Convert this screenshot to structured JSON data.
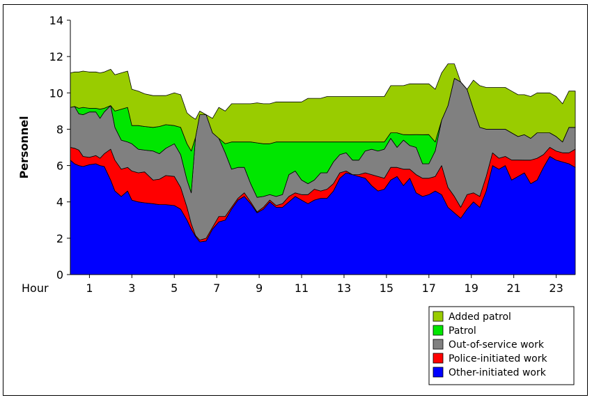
{
  "chart_data": {
    "type": "area",
    "stacked": true,
    "xlabel": "Hour",
    "ylabel": "Personnel",
    "xlim": [
      0.1,
      23.9
    ],
    "ylim": [
      0,
      14
    ],
    "yticks": [
      0,
      2,
      4,
      6,
      8,
      10,
      12,
      14
    ],
    "xticks": [
      1,
      3,
      5,
      7,
      9,
      11,
      13,
      15,
      17,
      19,
      21,
      23
    ],
    "legend_position": "bottom-right",
    "grid": false,
    "x": [
      0.1,
      0.3,
      0.5,
      0.7,
      1.0,
      1.3,
      1.5,
      1.7,
      2.0,
      2.2,
      2.5,
      2.8,
      3.0,
      3.3,
      3.6,
      4.0,
      4.3,
      4.6,
      5.0,
      5.3,
      5.6,
      5.8,
      6.0,
      6.2,
      6.5,
      6.8,
      7.1,
      7.4,
      7.7,
      8.0,
      8.3,
      8.6,
      8.9,
      9.2,
      9.5,
      9.8,
      10.1,
      10.4,
      10.7,
      11.0,
      11.3,
      11.6,
      11.9,
      12.2,
      12.5,
      12.8,
      13.1,
      13.4,
      13.7,
      14.0,
      14.3,
      14.6,
      14.9,
      15.2,
      15.5,
      15.8,
      16.1,
      16.4,
      16.7,
      17.0,
      17.3,
      17.6,
      17.9,
      18.2,
      18.5,
      18.8,
      19.1,
      19.4,
      19.7,
      20.0,
      20.3,
      20.6,
      20.9,
      21.2,
      21.5,
      21.8,
      22.1,
      22.4,
      22.7,
      23.0,
      23.3,
      23.6,
      23.9
    ],
    "series": [
      {
        "name": "Other-initiated work",
        "color": "#0000FF",
        "values": [
          6.3,
          6.1,
          6.0,
          5.95,
          6.05,
          6.1,
          6.0,
          5.95,
          5.2,
          4.6,
          4.3,
          4.6,
          4.1,
          4.0,
          3.95,
          3.9,
          3.85,
          3.85,
          3.8,
          3.6,
          3.0,
          2.5,
          2.1,
          1.8,
          1.85,
          2.5,
          2.9,
          3.0,
          3.6,
          4.1,
          4.3,
          3.9,
          3.4,
          3.6,
          4.0,
          3.7,
          3.7,
          4.0,
          4.3,
          4.1,
          3.9,
          4.1,
          4.2,
          4.2,
          4.6,
          5.3,
          5.6,
          5.5,
          5.4,
          5.3,
          4.9,
          4.6,
          4.7,
          5.2,
          5.4,
          4.9,
          5.3,
          4.5,
          4.3,
          4.4,
          4.6,
          4.4,
          3.7,
          3.4,
          3.1,
          3.6,
          4.0,
          3.7,
          4.6,
          6.0,
          5.8,
          6.0,
          5.2,
          5.4,
          5.6,
          5.0,
          5.2,
          5.9,
          6.5,
          6.3,
          6.2,
          6.1,
          5.9
        ]
      },
      {
        "name": "Police-initiated work",
        "color": "#FF0000",
        "values": [
          0.7,
          0.85,
          0.85,
          0.55,
          0.4,
          0.45,
          0.4,
          0.7,
          1.7,
          1.7,
          1.5,
          1.3,
          1.6,
          1.6,
          1.7,
          1.3,
          1.4,
          1.6,
          1.6,
          1.2,
          0.7,
          0.3,
          0.05,
          0.1,
          0.15,
          0.1,
          0.3,
          0.2,
          0.1,
          0.1,
          0.2,
          0.1,
          0.05,
          0.1,
          0.1,
          0.1,
          0.2,
          0.3,
          0.2,
          0.3,
          0.5,
          0.6,
          0.4,
          0.5,
          0.4,
          0.3,
          0.1,
          0.0,
          0.1,
          0.3,
          0.6,
          0.8,
          0.6,
          0.7,
          0.5,
          0.9,
          0.5,
          1.0,
          1.0,
          0.9,
          0.8,
          1.6,
          1.1,
          0.9,
          0.6,
          0.8,
          0.5,
          0.6,
          0.8,
          0.7,
          0.6,
          0.5,
          1.1,
          0.9,
          0.7,
          1.3,
          1.2,
          0.7,
          0.5,
          0.5,
          0.5,
          0.6,
          1.0
        ]
      },
      {
        "name": "Out-of-service work",
        "color": "#808080",
        "values": [
          2.2,
          2.3,
          2.0,
          2.3,
          2.5,
          2.4,
          2.2,
          2.3,
          2.4,
          1.8,
          1.6,
          1.4,
          1.5,
          1.3,
          1.2,
          1.6,
          1.4,
          1.5,
          1.8,
          1.8,
          1.5,
          1.7,
          5.4,
          6.9,
          6.8,
          5.2,
          4.3,
          3.5,
          2.1,
          1.7,
          1.4,
          1.0,
          0.8,
          0.6,
          0.3,
          0.5,
          0.5,
          1.2,
          1.2,
          0.8,
          0.6,
          0.5,
          1.0,
          0.9,
          1.2,
          1.0,
          1.0,
          0.8,
          0.8,
          1.2,
          1.4,
          1.4,
          1.6,
          1.6,
          1.1,
          1.6,
          1.3,
          1.5,
          0.8,
          0.8,
          1.4,
          2.5,
          4.5,
          6.5,
          6.9,
          5.8,
          4.6,
          3.8,
          2.6,
          1.3,
          1.6,
          1.5,
          1.5,
          1.3,
          1.4,
          1.2,
          1.4,
          1.2,
          0.8,
          0.8,
          0.6,
          1.4,
          1.2
        ]
      },
      {
        "name": "Patrol",
        "color": "#00E600",
        "values": [
          0.0,
          0.0,
          0.3,
          0.4,
          0.2,
          0.2,
          0.5,
          0.2,
          0.0,
          0.9,
          1.7,
          1.9,
          1.0,
          1.3,
          1.3,
          1.3,
          1.5,
          1.3,
          1.0,
          1.5,
          2.0,
          2.3,
          0.0,
          0.0,
          0.0,
          0.0,
          0.0,
          0.5,
          1.5,
          1.4,
          1.4,
          2.3,
          3.0,
          2.9,
          2.8,
          3.0,
          2.9,
          1.8,
          1.6,
          2.1,
          2.3,
          2.1,
          1.7,
          1.7,
          1.1,
          0.7,
          0.6,
          1.0,
          1.0,
          0.5,
          0.4,
          0.5,
          0.4,
          0.3,
          0.8,
          0.3,
          0.6,
          0.7,
          1.6,
          1.6,
          0.5,
          0.0,
          0.0,
          0.0,
          0.0,
          0.0,
          0.0,
          0.0,
          0.0,
          0.0,
          0.0,
          0.0,
          0.0,
          0.0,
          0.0,
          0.0,
          0.0,
          0.0,
          0.0,
          0.0,
          0.0,
          0.0,
          0.0
        ]
      },
      {
        "name": "Added patrol",
        "color": "#99CC00",
        "values": [
          1.9,
          1.9,
          2.0,
          2.0,
          2.0,
          2.0,
          2.0,
          2.0,
          2.0,
          2.0,
          2.0,
          2.0,
          2.0,
          1.9,
          1.8,
          1.75,
          1.7,
          1.6,
          1.8,
          1.8,
          1.7,
          1.9,
          1.0,
          0.2,
          0.0,
          0.8,
          1.7,
          1.8,
          2.1,
          2.1,
          2.1,
          2.1,
          2.2,
          2.2,
          2.2,
          2.2,
          2.2,
          2.2,
          2.2,
          2.2,
          2.4,
          2.4,
          2.4,
          2.5,
          2.5,
          2.5,
          2.5,
          2.5,
          2.5,
          2.5,
          2.5,
          2.5,
          2.5,
          2.6,
          2.6,
          2.7,
          2.8,
          2.8,
          2.8,
          2.8,
          2.9,
          2.6,
          2.3,
          0.8,
          0.0,
          0.0,
          1.6,
          2.3,
          2.3,
          2.3,
          2.3,
          2.3,
          2.3,
          2.3,
          2.2,
          2.3,
          2.2,
          2.2,
          2.2,
          2.2,
          2.1,
          2.0,
          2.0
        ]
      }
    ],
    "legend_order": [
      "Added patrol",
      "Patrol",
      "Out-of-service work",
      "Police-initiated work",
      "Other-initiated work"
    ]
  }
}
